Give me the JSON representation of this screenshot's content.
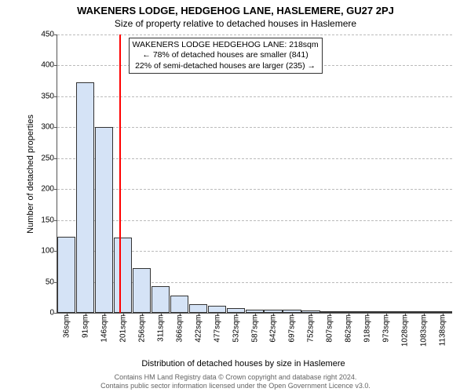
{
  "title": "WAKENERS LODGE, HEDGEHOG LANE, HASLEMERE, GU27 2PJ",
  "subtitle": "Size of property relative to detached houses in Haslemere",
  "chart": {
    "type": "histogram",
    "ylabel": "Number of detached properties",
    "xlabel": "Distribution of detached houses by size in Haslemere",
    "ylim": [
      0,
      450
    ],
    "ytick_step": 50,
    "bar_fill": "#d5e3f6",
    "bar_stroke": "#333333",
    "grid_color": "#bbbbbb",
    "background": "#ffffff",
    "reference_line_color": "#ff0000",
    "reference_value_sqm": 218,
    "categories": [
      "36sqm",
      "91sqm",
      "146sqm",
      "201sqm",
      "256sqm",
      "311sqm",
      "366sqm",
      "422sqm",
      "477sqm",
      "532sqm",
      "587sqm",
      "642sqm",
      "697sqm",
      "752sqm",
      "807sqm",
      "862sqm",
      "918sqm",
      "973sqm",
      "1028sqm",
      "1083sqm",
      "1138sqm"
    ],
    "values": [
      123,
      373,
      300,
      122,
      72,
      43,
      28,
      14,
      11,
      7,
      5,
      5,
      5,
      4,
      3,
      3,
      3,
      2,
      2,
      2,
      2
    ],
    "annotation": {
      "line1": "WAKENERS LODGE HEDGEHOG LANE: 218sqm",
      "line2": "← 78% of detached houses are smaller (841)",
      "line3": "22% of semi-detached houses are larger (235) →"
    }
  },
  "footer": {
    "line1": "Contains HM Land Registry data © Crown copyright and database right 2024.",
    "line2": "Contains public sector information licensed under the Open Government Licence v3.0."
  }
}
